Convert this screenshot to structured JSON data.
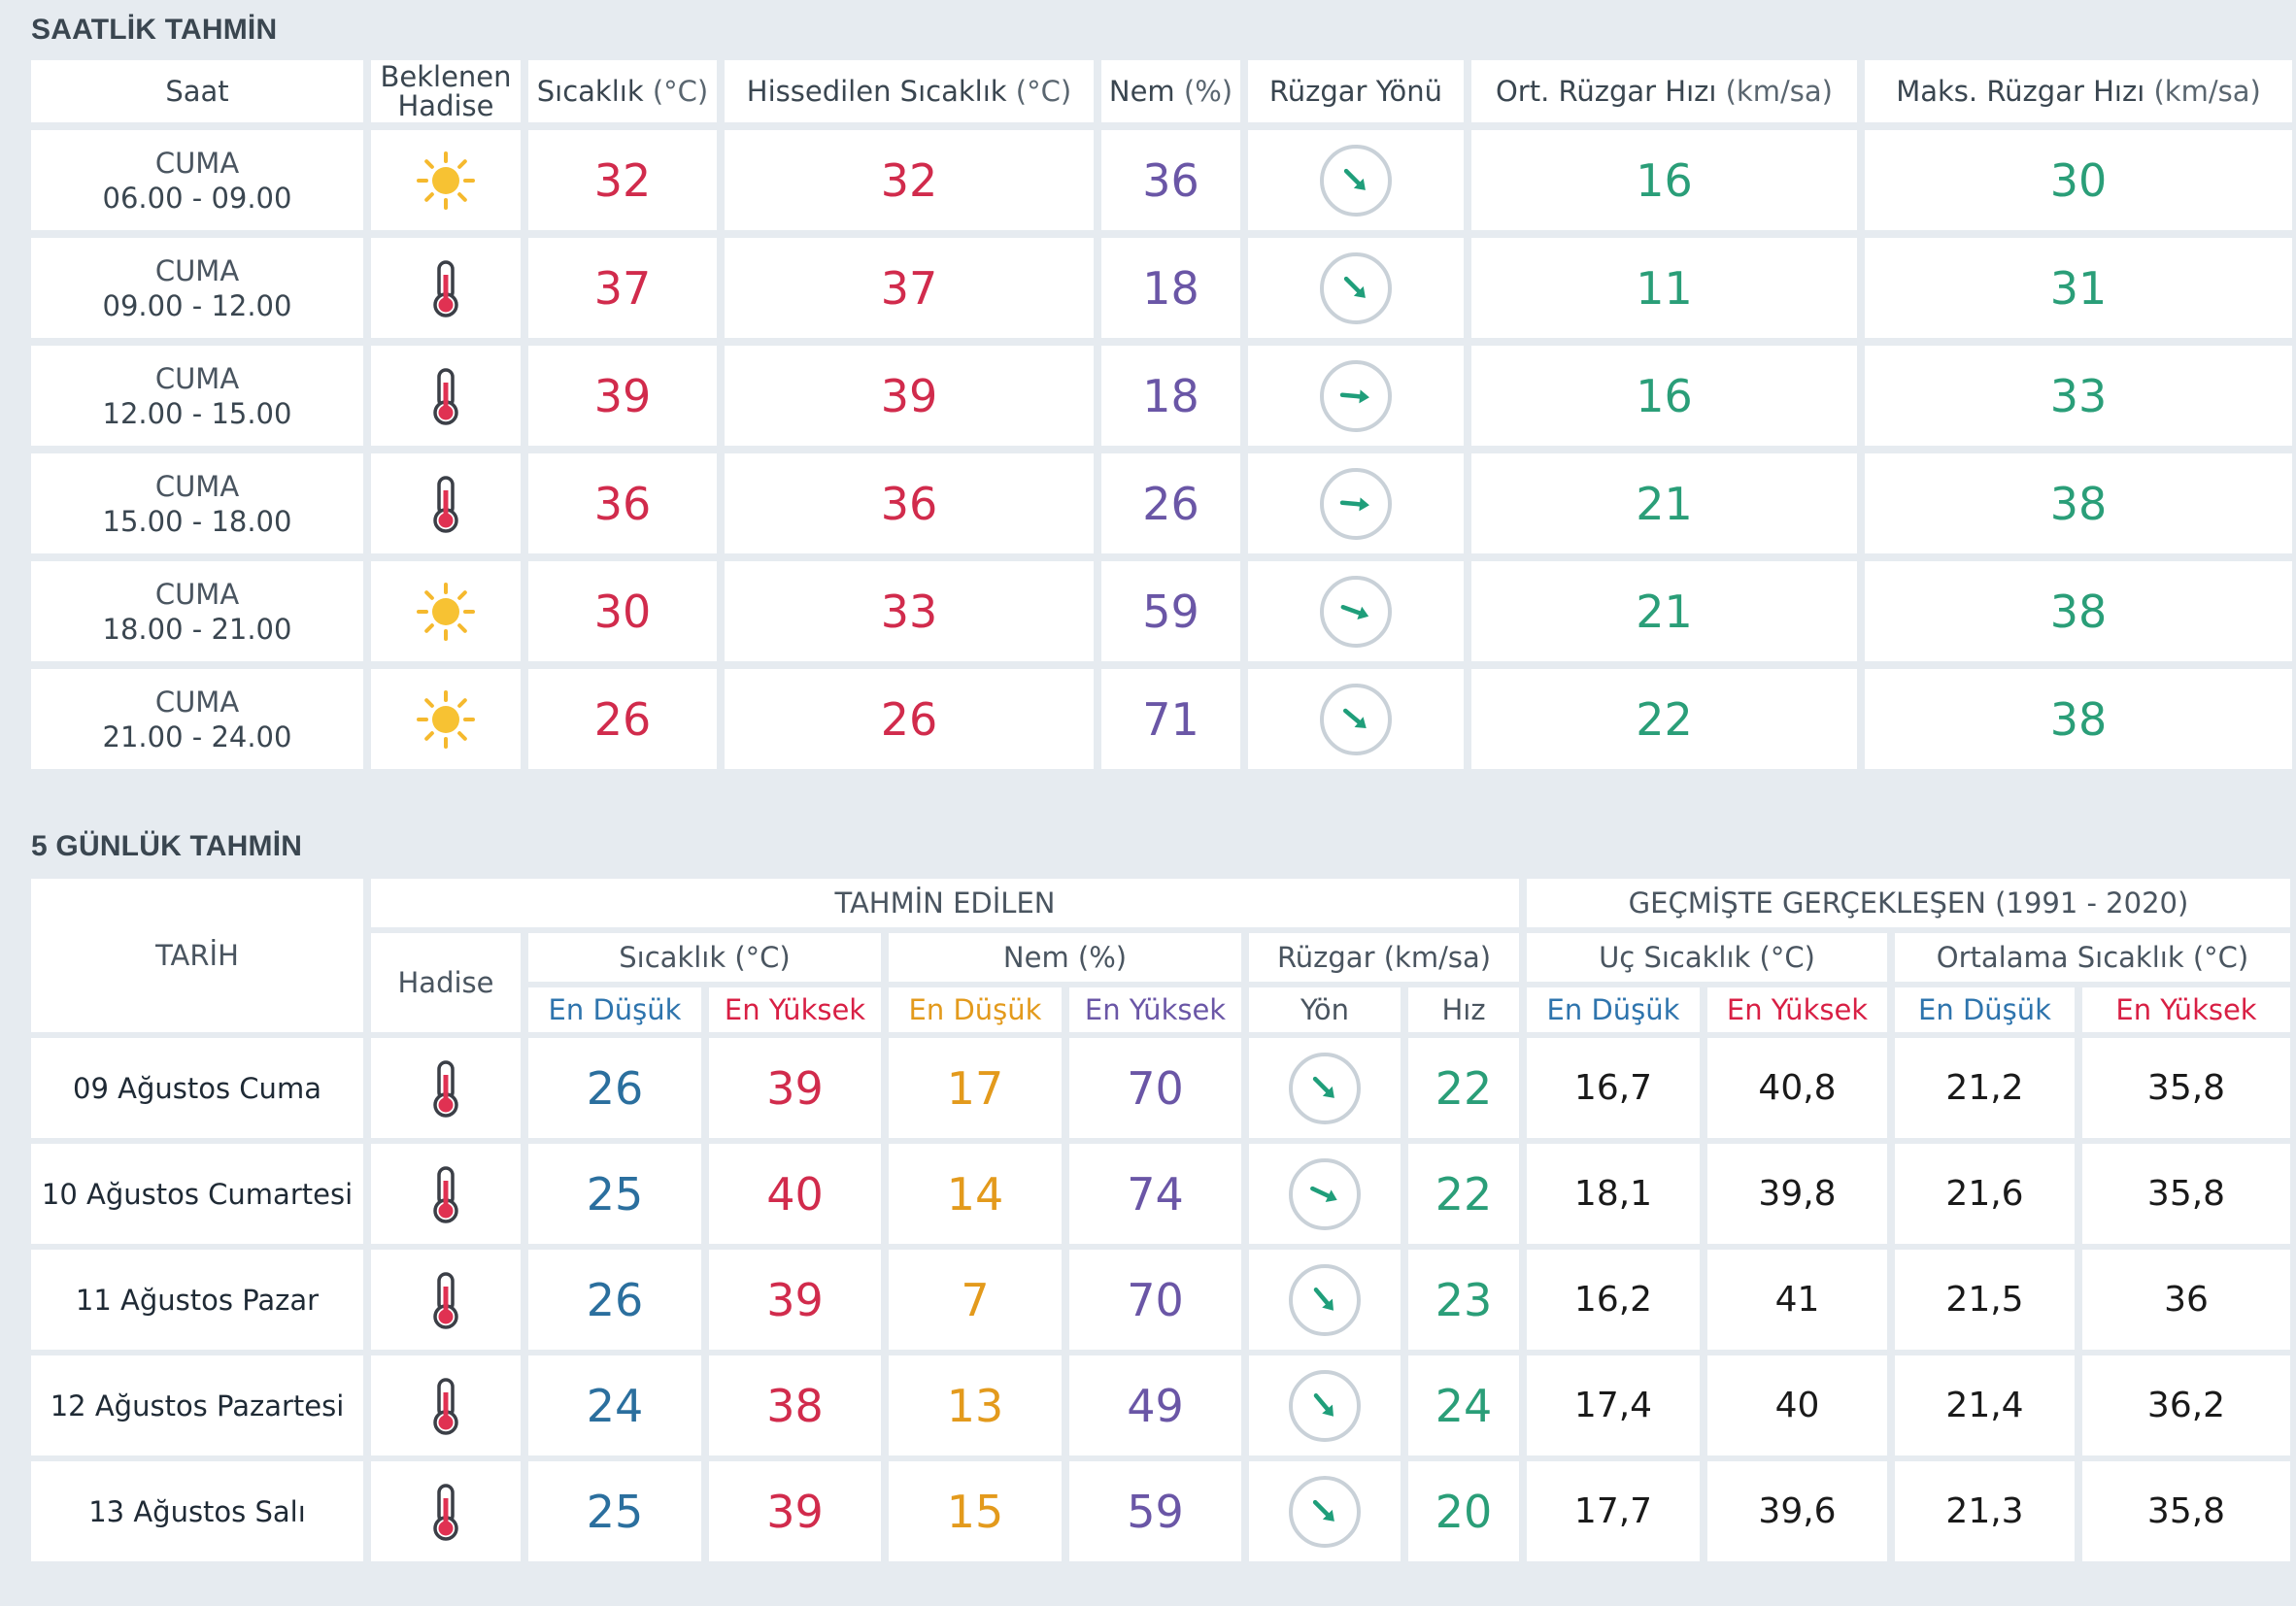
{
  "hourly": {
    "title": "SAATLİK TAHMİN",
    "headers": {
      "saat": "Saat",
      "hadise_l1": "Beklenen",
      "hadise_l2": "Hadise",
      "sicaklik": "Sıcaklık",
      "sicaklik_unit": "(°C)",
      "hissedilen": "Hissedilen Sıcaklık",
      "hissedilen_unit": "(°C)",
      "nem": "Nem",
      "nem_unit": "(%)",
      "ruzgar_yonu": "Rüzgar Yönü",
      "ort_ruzgar": "Ort. Rüzgar Hızı",
      "ort_ruzgar_unit": "(km/sa)",
      "maks_ruzgar": "Maks. Rüzgar Hızı",
      "maks_ruzgar_unit": "(km/sa)"
    },
    "rows": [
      {
        "day": "CUMA",
        "time": "06.00 - 09.00",
        "icon": "sun-icon",
        "temp": "32",
        "feels": "32",
        "humidity": "36",
        "wind_dir_deg": 135,
        "wind_avg": "16",
        "wind_max": "30"
      },
      {
        "day": "CUMA",
        "time": "09.00 - 12.00",
        "icon": "thermometer-icon",
        "temp": "37",
        "feels": "37",
        "humidity": "18",
        "wind_dir_deg": 135,
        "wind_avg": "11",
        "wind_max": "31"
      },
      {
        "day": "CUMA",
        "time": "12.00 - 15.00",
        "icon": "thermometer-icon",
        "temp": "39",
        "feels": "39",
        "humidity": "18",
        "wind_dir_deg": 95,
        "wind_avg": "16",
        "wind_max": "33"
      },
      {
        "day": "CUMA",
        "time": "15.00 - 18.00",
        "icon": "thermometer-icon",
        "temp": "36",
        "feels": "36",
        "humidity": "26",
        "wind_dir_deg": 95,
        "wind_avg": "21",
        "wind_max": "38"
      },
      {
        "day": "CUMA",
        "time": "18.00 - 21.00",
        "icon": "sun-icon",
        "temp": "30",
        "feels": "33",
        "humidity": "59",
        "wind_dir_deg": 110,
        "wind_avg": "21",
        "wind_max": "38"
      },
      {
        "day": "CUMA",
        "time": "21.00 - 24.00",
        "icon": "sun-icon",
        "temp": "26",
        "feels": "26",
        "humidity": "71",
        "wind_dir_deg": 130,
        "wind_avg": "22",
        "wind_max": "38"
      }
    ]
  },
  "daily": {
    "title": "5 GÜNLÜK TAHMİN",
    "headers": {
      "tarih": "TARİH",
      "tahmin_edilen": "TAHMİN EDİLEN",
      "gecmiste": "GEÇMİŞTE GERÇEKLEŞEN (1991 - 2020)",
      "hadise": "Hadise",
      "sicaklik": "Sıcaklık (°C)",
      "nem": "Nem (%)",
      "ruzgar": "Rüzgar (km/sa)",
      "uc_sicaklik": "Uç Sıcaklık (°C)",
      "ort_sicaklik": "Ortalama Sıcaklık (°C)",
      "en_dusuk": "En Düşük",
      "en_yuksek": "En Yüksek",
      "yon": "Yön",
      "hiz": "Hız"
    },
    "rows": [
      {
        "date": "09 Ağustos Cuma",
        "icon": "thermometer-icon",
        "t_min": "26",
        "t_max": "39",
        "h_min": "17",
        "h_max": "70",
        "wind_dir_deg": 135,
        "wind_speed": "22",
        "uc_min": "16,7",
        "uc_max": "40,8",
        "ort_min": "21,2",
        "ort_max": "35,8"
      },
      {
        "date": "10 Ağustos Cumartesi",
        "icon": "thermometer-icon",
        "t_min": "25",
        "t_max": "40",
        "h_min": "14",
        "h_max": "74",
        "wind_dir_deg": 115,
        "wind_speed": "22",
        "uc_min": "18,1",
        "uc_max": "39,8",
        "ort_min": "21,6",
        "ort_max": "35,8"
      },
      {
        "date": "11 Ağustos Pazar",
        "icon": "thermometer-icon",
        "t_min": "26",
        "t_max": "39",
        "h_min": "7",
        "h_max": "70",
        "wind_dir_deg": 140,
        "wind_speed": "23",
        "uc_min": "16,2",
        "uc_max": "41",
        "ort_min": "21,5",
        "ort_max": "36"
      },
      {
        "date": "12 Ağustos Pazartesi",
        "icon": "thermometer-icon",
        "t_min": "24",
        "t_max": "38",
        "h_min": "13",
        "h_max": "49",
        "wind_dir_deg": 140,
        "wind_speed": "24",
        "uc_min": "17,4",
        "uc_max": "40",
        "ort_min": "21,4",
        "ort_max": "36,2"
      },
      {
        "date": "13 Ağustos Salı",
        "icon": "thermometer-icon",
        "t_min": "25",
        "t_max": "39",
        "h_min": "15",
        "h_max": "59",
        "wind_dir_deg": 135,
        "wind_speed": "20",
        "uc_min": "17,7",
        "uc_max": "39,6",
        "ort_min": "21,3",
        "ort_max": "35,8"
      }
    ]
  }
}
